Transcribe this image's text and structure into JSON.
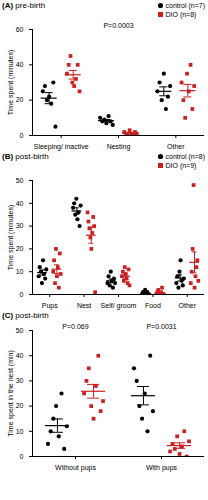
{
  "chart_data": [
    {
      "type": "scatter",
      "panel": "(A)",
      "title": "pre-birth",
      "y_label": "Time spent (minutes)",
      "categories": [
        "Sleeping/ inactive",
        "Nesting",
        "Other"
      ],
      "ylim": [
        0,
        60
      ],
      "yticks": [
        0,
        20,
        40,
        60
      ],
      "legend": "top-right",
      "series": [
        {
          "name": "control (n=7)",
          "color": "#000000",
          "marker": "circle",
          "values": [
            [
              25,
              28,
              20,
              22,
              18,
              30,
              5
            ],
            [
              10,
              8,
              9,
              7,
              11,
              8,
              6
            ],
            [
              25,
              30,
              20,
              35,
              15,
              22,
              28
            ]
          ]
        },
        {
          "name": "DIO (n=8)",
          "color": "#cc1f1f",
          "marker": "square",
          "values": [
            [
              35,
              40,
              45,
              30,
              28,
              32,
              40,
              25
            ],
            [
              2,
              1,
              0,
              3,
              1,
              0,
              2,
              1
            ],
            [
              30,
              20,
              10,
              35,
              25,
              40,
              15,
              28
            ]
          ]
        }
      ],
      "annotations": [
        {
          "category": "Nesting",
          "text": "P=0.0003"
        }
      ]
    },
    {
      "type": "scatter",
      "panel": "(B)",
      "title": "post-birth",
      "y_label": "Time spent (minutes)",
      "categories": [
        "Pups",
        "Nest",
        "Self/ groom",
        "Food",
        "Other"
      ],
      "ylim": [
        0,
        50
      ],
      "yticks": [
        0,
        10,
        20,
        30,
        40,
        50
      ],
      "legend": "top-right",
      "series": [
        {
          "name": "control (n=8)",
          "color": "#000000",
          "marker": "circle",
          "values": [
            [
              8,
              12,
              10,
              5,
              15,
              9,
              7,
              11
            ],
            [
              38,
              40,
              35,
              42,
              33,
              36,
              30,
              39
            ],
            [
              5,
              8,
              4,
              10,
              6,
              3,
              7,
              5
            ],
            [
              0,
              1,
              0,
              2,
              0,
              1,
              0,
              0
            ],
            [
              5,
              8,
              3,
              10,
              15,
              6,
              4,
              7
            ]
          ]
        },
        {
          "name": "DIO (n=9)",
          "color": "#cc1f1f",
          "marker": "square",
          "values": [
            [
              10,
              15,
              5,
              20,
              8,
              12,
              3,
              18,
              9
            ],
            [
              36,
              32,
              29,
              25,
              20,
              27,
              34,
              30,
              1
            ],
            [
              8,
              10,
              6,
              12,
              9,
              7,
              5,
              11,
              4
            ],
            [
              0,
              1,
              2,
              0,
              0,
              1,
              3,
              0,
              0
            ],
            [
              5,
              10,
              20,
              48,
              3,
              8,
              12,
              15,
              6
            ]
          ]
        }
      ],
      "annotations": []
    },
    {
      "type": "scatter",
      "panel": "(C)",
      "title": "post-birth",
      "y_label": "Time spent in the nest (min)",
      "categories": [
        "Without pups",
        "With pups"
      ],
      "ylim": [
        0,
        50
      ],
      "yticks": [
        0,
        10,
        20,
        30,
        40,
        50
      ],
      "series": [
        {
          "name": "control (n=8)",
          "color": "#000000",
          "marker": "circle",
          "values": [
            [
              5,
              10,
              15,
              20,
              8,
              25,
              3,
              12
            ],
            [
              35,
              30,
              20,
              15,
              25,
              10,
              40,
              18
            ]
          ]
        },
        {
          "name": "DIO (n=9)",
          "color": "#cc1f1f",
          "marker": "square",
          "values": [
            [
              25,
              30,
              35,
              20,
              15,
              28,
              40,
              18,
              22
            ],
            [
              2,
              5,
              3,
              8,
              1,
              4,
              10,
              0,
              6
            ]
          ]
        }
      ],
      "annotations": [
        {
          "category": "Without pups",
          "text": "P=0.069"
        },
        {
          "category": "With pups",
          "text": "P=0.0031"
        }
      ]
    }
  ]
}
